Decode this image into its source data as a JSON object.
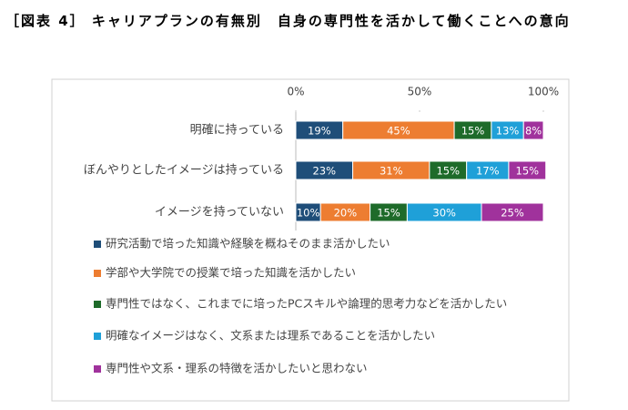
{
  "chart_data": {
    "type": "stacked-bar-horizontal",
    "title": "［図表 4］ キャリアプランの有無別　自身の専門性を活かして働くことへの意向",
    "categories": [
      "明確に持っている",
      "ぼんやりとしたイメージは持っている",
      "イメージを持っていない"
    ],
    "series": [
      {
        "name": "研究活動で培った知識や経験を概ねそのまま活かしたい",
        "color": "#1f4e79",
        "values": [
          19,
          23,
          10
        ],
        "value_labels": [
          "19%",
          "23%",
          "10%"
        ]
      },
      {
        "name": "学部や大学院での授業で培った知識を活かしたい",
        "color": "#ed7d31",
        "values": [
          45,
          31,
          20
        ],
        "value_labels": [
          "45%",
          "31%",
          "20%"
        ]
      },
      {
        "name": "専門性ではなく、これまでに培ったPCスキルや論理的思考力などを活かしたい",
        "color": "#1e6b2a",
        "values": [
          15,
          15,
          15
        ],
        "value_labels": [
          "15%",
          "15%",
          "15%"
        ]
      },
      {
        "name": "明確なイメージはなく、文系または理系であることを活かしたい",
        "color": "#1fa0d8",
        "values": [
          13,
          17,
          30
        ],
        "value_labels": [
          "13%",
          "17%",
          "30%"
        ]
      },
      {
        "name": "専門性や文系・理系の特徴を活かしたいと思わない",
        "color": "#a0329c",
        "values": [
          8,
          15,
          25
        ],
        "value_labels": [
          "8%",
          "15%",
          "25%"
        ]
      }
    ],
    "xlim": [
      0,
      100
    ],
    "xticks": [
      {
        "value": 0,
        "label": "0%"
      },
      {
        "value": 50,
        "label": "50%"
      },
      {
        "value": 100,
        "label": "100%"
      }
    ]
  }
}
